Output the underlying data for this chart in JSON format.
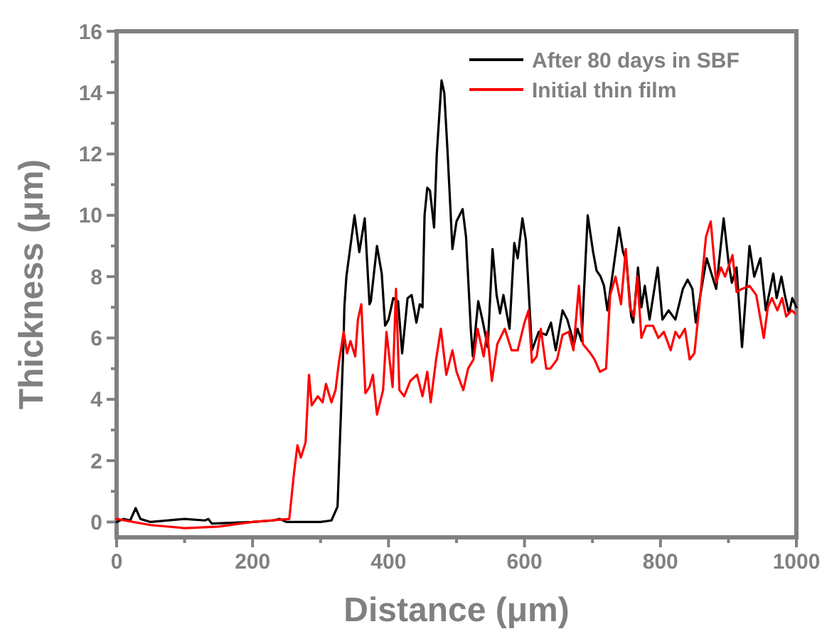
{
  "chart_data": {
    "type": "line",
    "xlabel": "Distance (μm)",
    "ylabel": "Thickness (μm)",
    "xlim": [
      0,
      1000
    ],
    "ylim": [
      -0.5,
      16
    ],
    "xticks": [
      0,
      {
        "value": 100,
        "label": null
      },
      200,
      {
        "value": 300,
        "label": null
      },
      400,
      {
        "value": 500,
        "label": null
      },
      600,
      {
        "value": 700,
        "label": null
      },
      800,
      {
        "value": 900,
        "label": null
      },
      1000
    ],
    "yticks": [
      0,
      {
        "value": 1,
        "label": null
      },
      2,
      {
        "value": 3,
        "label": null
      },
      4,
      {
        "value": 5,
        "label": null
      },
      6,
      {
        "value": 7,
        "label": null
      },
      8,
      {
        "value": 9,
        "label": null
      },
      10,
      {
        "value": 11,
        "label": null
      },
      12,
      {
        "value": 13,
        "label": null
      },
      14,
      {
        "value": 15,
        "label": null
      },
      16
    ],
    "grid": false,
    "legend": "top right",
    "marker": "none",
    "line_style": "solid",
    "series": [
      {
        "name": "After 80 days in SBF",
        "color": "#000000",
        "x": [
          0,
          10,
          20,
          28,
          35,
          50,
          100,
          130,
          135,
          140,
          200,
          230,
          240,
          250,
          300,
          316,
          325,
          334,
          335,
          338,
          350,
          357,
          365,
          372,
          374,
          383,
          390,
          395,
          400,
          407,
          414,
          420,
          428,
          434,
          441,
          446,
          450,
          453,
          457,
          461,
          467,
          471,
          478,
          482,
          487,
          494,
          500,
          509,
          514,
          521,
          524,
          532,
          539,
          546,
          553,
          559,
          564,
          569,
          578,
          585,
          590,
          597,
          602,
          611,
          621,
          632,
          639,
          646,
          656,
          663,
          673,
          678,
          684,
          693,
          701,
          706,
          712,
          717,
          722,
          731,
          739,
          745,
          750,
          757,
          760,
          767,
          772,
          777,
          784,
          796,
          803,
          812,
          822,
          833,
          840,
          847,
          852,
          861,
          868,
          875,
          882,
          893,
          900,
          905,
          912,
          920,
          931,
          938,
          947,
          955,
          966,
          971,
          978,
          983,
          989,
          994,
          1000
        ],
        "values": [
          0,
          0.1,
          0.05,
          0.45,
          0.1,
          0,
          0.1,
          0.05,
          0.1,
          -0.05,
          0,
          0.05,
          0.1,
          0,
          0,
          0.05,
          0.5,
          6,
          7,
          8,
          10,
          8.8,
          9.9,
          7.1,
          7.2,
          9,
          8.1,
          6.4,
          6.6,
          7.3,
          7.2,
          5.5,
          7.3,
          7.4,
          6.5,
          7.1,
          7,
          10,
          10.9,
          10.8,
          9.6,
          12,
          14.4,
          14,
          12,
          8.9,
          9.8,
          10.2,
          9.3,
          6.3,
          5.4,
          7.2,
          6.5,
          5.7,
          8.9,
          7.4,
          6.8,
          7.4,
          6.3,
          9.1,
          8.6,
          9.9,
          9.2,
          5.6,
          6.2,
          6.1,
          6.5,
          5.6,
          6.9,
          6.6,
          5.8,
          6.3,
          5.9,
          10,
          8.8,
          8.2,
          8,
          7.7,
          6.9,
          8.3,
          9.6,
          8.8,
          8.5,
          6.7,
          6.5,
          8.3,
          7,
          7.7,
          6.6,
          8.3,
          6.6,
          6.9,
          6.6,
          7.6,
          7.9,
          7.6,
          6.5,
          7.7,
          8.6,
          8.1,
          7.6,
          9.9,
          8.5,
          7.8,
          8.3,
          5.7,
          9,
          8,
          8.6,
          6.9,
          8.1,
          7.3,
          8,
          7.4,
          6.8,
          7.3,
          7
        ]
      },
      {
        "name": "Initial thin film",
        "color": "#ff0000",
        "x": [
          0,
          50,
          100,
          150,
          200,
          254,
          261,
          266,
          271,
          278,
          283,
          287,
          296,
          303,
          308,
          316,
          322,
          327,
          334,
          339,
          344,
          351,
          355,
          360,
          366,
          372,
          377,
          383,
          392,
          397,
          406,
          411,
          416,
          423,
          432,
          442,
          450,
          457,
          462,
          470,
          477,
          485,
          494,
          500,
          510,
          517,
          525,
          531,
          540,
          545,
          552,
          560,
          571,
          581,
          590,
          600,
          606,
          611,
          618,
          624,
          632,
          638,
          648,
          656,
          665,
          672,
          680,
          686,
          697,
          703,
          711,
          720,
          726,
          734,
          742,
          749,
          755,
          761,
          766,
          772,
          779,
          789,
          797,
          805,
          815,
          822,
          828,
          836,
          843,
          850,
          857,
          867,
          874,
          882,
          889,
          895,
          906,
          912,
          920,
          931,
          941,
          952,
          958,
          964,
          972,
          979,
          985,
          993,
          998
        ],
        "values": [
          0.1,
          -0.1,
          -0.2,
          -0.15,
          0,
          0.1,
          1.6,
          2.5,
          2.1,
          2.6,
          4.8,
          3.8,
          4.1,
          3.9,
          4.5,
          3.9,
          4.3,
          5.2,
          6.2,
          5.5,
          5.9,
          5.4,
          6.6,
          7.1,
          4.2,
          4.4,
          4.8,
          3.5,
          4.3,
          6.2,
          4.4,
          7.6,
          4.3,
          4.1,
          4.6,
          4.8,
          4.1,
          4.9,
          3.9,
          5.3,
          6.3,
          4.8,
          5.6,
          4.9,
          4.3,
          5,
          5.3,
          6.3,
          5.4,
          6.2,
          4.6,
          5.8,
          6.3,
          5.6,
          5.6,
          6.5,
          6.9,
          5.2,
          5.4,
          6.3,
          5,
          5,
          5.3,
          6.1,
          6.2,
          5.6,
          7.7,
          5.8,
          5.5,
          5.3,
          4.9,
          5,
          7.4,
          8,
          7.1,
          8.9,
          7,
          6.7,
          8,
          6,
          6.4,
          6.4,
          6,
          6.2,
          5.6,
          6.2,
          6,
          6.3,
          5.3,
          5.5,
          7,
          9.3,
          9.8,
          7.8,
          8.3,
          8,
          8.7,
          7.5,
          7.6,
          7.7,
          7.4,
          6,
          7,
          7.3,
          6.9,
          7.3,
          6.7,
          6.9,
          6.8
        ]
      }
    ]
  }
}
